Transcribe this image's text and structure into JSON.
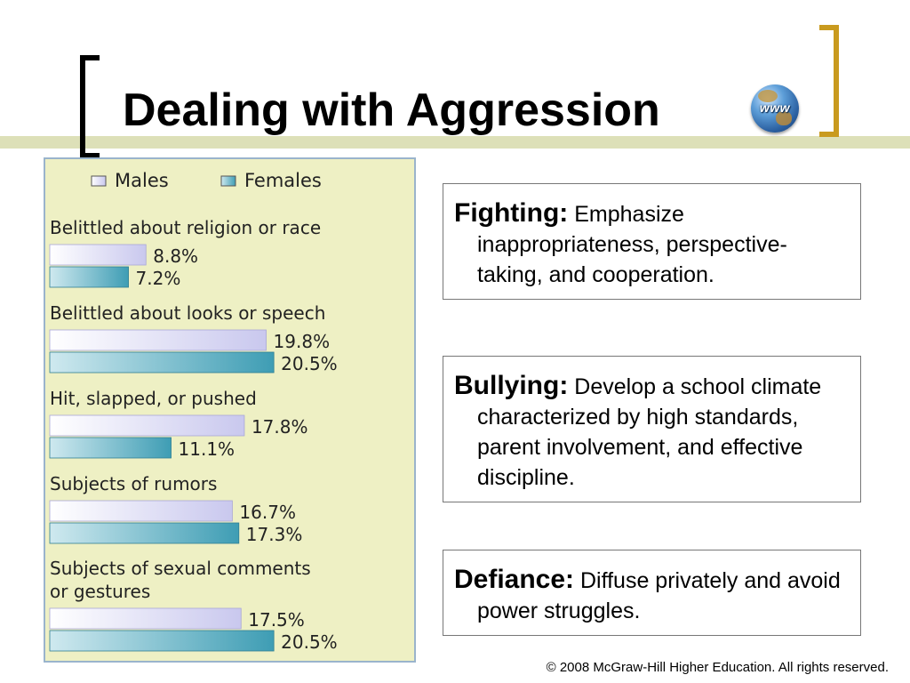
{
  "slide": {
    "title": "Dealing with Aggression",
    "globe_label": "www",
    "copyright": "© 2008 McGraw-Hill Higher Education. All rights reserved."
  },
  "colors": {
    "title_bar": "#dde0b8",
    "right_bracket": "#c99a1e",
    "chart_background": "#eef0c4",
    "males_bar": "#c9c8ee",
    "females_bar": "#3e9db4"
  },
  "boxes": [
    {
      "term": "Fighting:",
      "text": "Emphasize inappropriateness, perspective-taking, and cooperation."
    },
    {
      "term": "Bullying:",
      "text": "Develop a school climate characterized by high standards, parent involvement, and effective discipline."
    },
    {
      "term": "Defiance:",
      "text": "Diffuse privately and avoid power struggles."
    }
  ],
  "chart_data": {
    "type": "bar",
    "orientation": "horizontal",
    "legend": [
      "Males",
      "Females"
    ],
    "legend_placement": "top",
    "categories": [
      [
        "Belittled about religion or race"
      ],
      [
        "Belittled about looks or speech"
      ],
      [
        "Hit, slapped, or pushed"
      ],
      [
        "Subjects of rumors"
      ],
      [
        "Subjects of sexual comments",
        "or gestures"
      ]
    ],
    "series": [
      {
        "name": "Males",
        "values": [
          8.8,
          19.8,
          17.8,
          16.7,
          17.5
        ],
        "labels": [
          "8.8%",
          "19.8%",
          "17.8%",
          "16.7%",
          "17.5%"
        ]
      },
      {
        "name": "Females",
        "values": [
          7.2,
          20.5,
          11.1,
          17.3,
          20.5
        ],
        "labels": [
          "7.2%",
          "20.5%",
          "11.1%",
          "17.3%",
          "20.5%"
        ]
      }
    ],
    "unit": "%",
    "grid": false
  }
}
